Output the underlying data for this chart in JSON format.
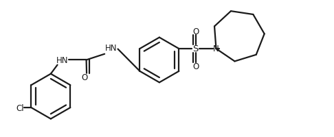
{
  "bg_color": "#ffffff",
  "line_color": "#1a1a1a",
  "line_width": 1.6,
  "text_color": "#1a1a1a",
  "font_size": 8.5,
  "fig_width": 4.86,
  "fig_height": 2.01,
  "dpi": 100,
  "xlim": [
    0,
    10
  ],
  "ylim": [
    0,
    4.1
  ]
}
